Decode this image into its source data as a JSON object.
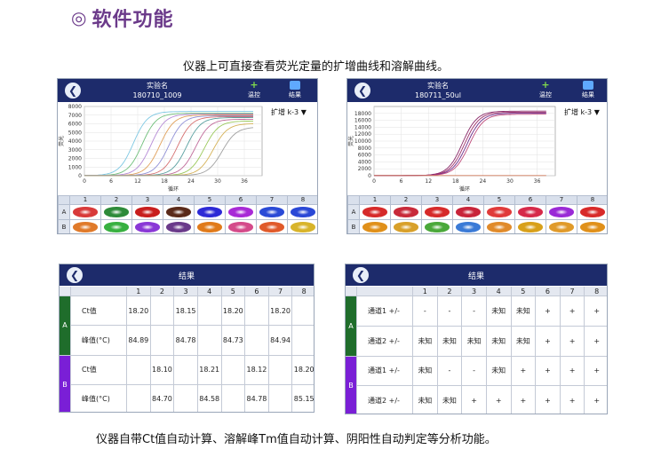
{
  "page": {
    "title": "软件功能",
    "bullet": "◎",
    "caption_top": "仪器上可直接查看荧光定量的扩增曲线和溶解曲线。",
    "caption_bottom": "仪器自带Ct值自动计算、溶解峰Tm值自动计算、阴阳性自动判定等分析功能。"
  },
  "colors": {
    "header_bg": "#1d2b6b",
    "row_a": "#1f6d2b",
    "row_b": "#7a1fd6",
    "title": "#6b3a8a"
  },
  "screen1": {
    "exp_label": "实验名",
    "exp_name": "180710_1009",
    "temp_label": "温控",
    "result_label": "结果",
    "mode_label": "扩增 k-3",
    "axis_x_label": "循环",
    "axis_y_label": "荧光",
    "chart_data": {
      "type": "line",
      "title": "",
      "xlabel": "循环",
      "ylabel": "荧光",
      "xlim": [
        0,
        40
      ],
      "ylim": [
        0,
        8000
      ],
      "x_ticks": [
        0,
        6,
        12,
        18,
        24,
        30,
        36
      ],
      "y_ticks": [
        0,
        1000,
        2000,
        3000,
        4000,
        5000,
        6000,
        7000,
        8000
      ],
      "series": [
        {
          "color": "#7ec8e3",
          "ct": 11,
          "plateau": 7400
        },
        {
          "color": "#6fbf7a",
          "ct": 13,
          "plateau": 7200
        },
        {
          "color": "#b58ad6",
          "ct": 15,
          "plateau": 7100
        },
        {
          "color": "#e0a05a",
          "ct": 17,
          "plateau": 7000
        },
        {
          "color": "#8f8fd6",
          "ct": 19,
          "plateau": 6900
        },
        {
          "color": "#d67070",
          "ct": 21,
          "plateau": 6800
        },
        {
          "color": "#5aa0a0",
          "ct": 23,
          "plateau": 6700
        },
        {
          "color": "#c06a9a",
          "ct": 25,
          "plateau": 6500
        },
        {
          "color": "#9ac85a",
          "ct": 27,
          "plateau": 6300
        },
        {
          "color": "#d6b35a",
          "ct": 29,
          "plateau": 6000
        },
        {
          "color": "#a0a0a0",
          "ct": 31,
          "plateau": 5600
        }
      ]
    },
    "wells": {
      "cols": [
        "1",
        "2",
        "3",
        "4",
        "5",
        "6",
        "7",
        "8"
      ],
      "rows": [
        "A",
        "B"
      ],
      "row_a_colors": [
        "#d83a3a",
        "#2e8b3a",
        "#c81e1e",
        "#5a2a1a",
        "#2d2ad6",
        "#a82ad6",
        "#2a4ad6",
        "#2a48d6"
      ],
      "row_b_colors": [
        "#e07a2a",
        "#38b040",
        "#8a38d6",
        "#6a3a8a",
        "#e07a1a",
        "#d44a8a",
        "#e05a2a",
        "#d8b42a"
      ]
    }
  },
  "screen2": {
    "exp_label": "实验名",
    "exp_name": "180711_50ul",
    "temp_label": "温控",
    "result_label": "结果",
    "mode_label": "扩增 k-3",
    "axis_x_label": "循环",
    "axis_y_label": "荧光",
    "chart_data": {
      "type": "line",
      "title": "",
      "xlabel": "循环",
      "ylabel": "荧光",
      "xlim": [
        0,
        40
      ],
      "ylim": [
        0,
        20000
      ],
      "x_ticks": [
        0,
        6,
        12,
        18,
        24,
        30,
        36
      ],
      "y_ticks": [
        0,
        2000,
        4000,
        6000,
        8000,
        10000,
        12000,
        14000,
        16000,
        18000
      ],
      "series": [
        {
          "color": "#8a2a6a",
          "ct": 19.5,
          "plateau": 18600
        },
        {
          "color": "#a0306a",
          "ct": 20,
          "plateau": 18300
        },
        {
          "color": "#6a2a8a",
          "ct": 20.5,
          "plateau": 18000
        },
        {
          "color": "#c04a7a",
          "ct": 21,
          "plateau": 17700
        },
        {
          "color": "#d07a5a",
          "ct": 99,
          "plateau": 0
        }
      ]
    },
    "wells": {
      "cols": [
        "1",
        "2",
        "3",
        "4",
        "5",
        "6",
        "7",
        "8"
      ],
      "rows": [
        "A",
        "B"
      ],
      "row_a_colors": [
        "#d62a2a",
        "#c82a3a",
        "#d62a2a",
        "#c8243a",
        "#e03a3a",
        "#d62a4a",
        "#9a2ad6",
        "#d82a2a"
      ],
      "row_b_colors": [
        "#e0901a",
        "#d8a02a",
        "#4aa83a",
        "#3a7ad6",
        "#e08a2a",
        "#d8a01a",
        "#e09a2a",
        "#e0901a"
      ]
    }
  },
  "result1": {
    "title": "结果",
    "cols": [
      "1",
      "2",
      "3",
      "4",
      "5",
      "6",
      "7",
      "8"
    ],
    "sections": [
      {
        "label": "A",
        "rows": [
          {
            "name": "Ct值",
            "cells": [
              "18.20",
              "",
              "18.15",
              "",
              "18.20",
              "",
              "18.20",
              ""
            ]
          },
          {
            "name": "峰值(°C)",
            "cells": [
              "84.89",
              "",
              "84.78",
              "",
              "84.73",
              "",
              "84.94",
              ""
            ]
          }
        ]
      },
      {
        "label": "B",
        "rows": [
          {
            "name": "Ct值",
            "cells": [
              "",
              "18.10",
              "",
              "18.21",
              "",
              "18.12",
              "",
              "18.20"
            ]
          },
          {
            "name": "峰值(°C)",
            "cells": [
              "",
              "84.70",
              "",
              "84.58",
              "",
              "84.78",
              "",
              "85.15"
            ]
          }
        ]
      }
    ]
  },
  "result2": {
    "title": "结果",
    "cols": [
      "1",
      "2",
      "3",
      "4",
      "5",
      "6",
      "7",
      "8"
    ],
    "sections": [
      {
        "label": "A",
        "rows": [
          {
            "name": "通道1 +/-",
            "cells": [
              "-",
              "-",
              "-",
              "未知",
              "未知",
              "+",
              "+",
              "+"
            ]
          },
          {
            "name": "通道2 +/-",
            "cells": [
              "未知",
              "未知",
              "未知",
              "未知",
              "未知",
              "+",
              "+",
              "+"
            ]
          }
        ]
      },
      {
        "label": "B",
        "rows": [
          {
            "name": "通道1 +/-",
            "cells": [
              "未知",
              "-",
              "-",
              "未知",
              "+",
              "+",
              "+",
              "+"
            ]
          },
          {
            "name": "通道2 +/-",
            "cells": [
              "未知",
              "未知",
              "+",
              "+",
              "+",
              "+",
              "+",
              "+"
            ]
          }
        ]
      }
    ]
  }
}
